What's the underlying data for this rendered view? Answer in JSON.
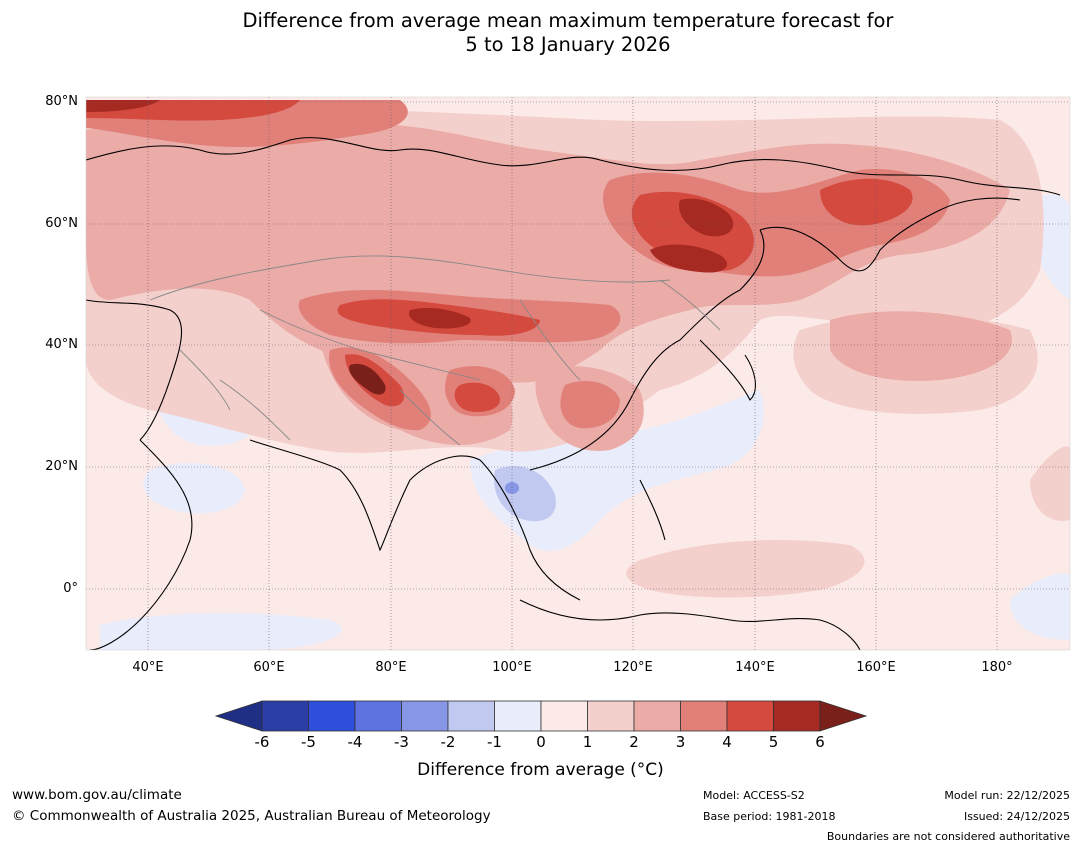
{
  "title_line1": "Difference from average mean maximum temperature forecast for",
  "title_line2": "5 to 18 January 2026",
  "map": {
    "lat_labels": [
      "80°N",
      "60°N",
      "40°N",
      "20°N",
      "0°"
    ],
    "lon_labels": [
      "40°E",
      "60°E",
      "80°E",
      "100°E",
      "120°E",
      "140°E",
      "160°E",
      "180°"
    ],
    "colors": {
      "ocean_base": "#fbeae8",
      "cool_light": "#e9ecfb",
      "cool_mid": "#c1c9f1",
      "cool_strong": "#8896e6",
      "warm_1": "#f4d0cd",
      "warm_2": "#ebaba7",
      "warm_3": "#e18079",
      "warm_4": "#d44a3f",
      "warm_5": "#a72a22",
      "warm_6": "#7a1f1a",
      "coast": "#000000",
      "border": "#888888",
      "grid": "#555555"
    }
  },
  "colorbar": {
    "ticks": [
      "-6",
      "-5",
      "-4",
      "-3",
      "-2",
      "-1",
      "0",
      "1",
      "2",
      "3",
      "4",
      "5",
      "6"
    ],
    "colors": [
      "#2b3da6",
      "#2d4fdb",
      "#5e73e0",
      "#8896e6",
      "#c1c9f1",
      "#e9ecfb",
      "#fbeae8",
      "#f4d0cd",
      "#ebaba7",
      "#e18079",
      "#d44a3f",
      "#a72a22"
    ],
    "extend_low": "#1f2f85",
    "extend_high": "#7a1f1a",
    "title": "Difference from average (°C)"
  },
  "footer": {
    "url": "www.bom.gov.au/climate",
    "copyright": "© Commonwealth of Australia 2025, Australian Bureau of Meteorology",
    "model": "Model: ACCESS-S2",
    "base_period": "Base period: 1981-2018",
    "model_run": "Model run: 22/12/2025",
    "issued": "Issued: 24/12/2025",
    "disclaimer": "Boundaries are not considered authoritative"
  }
}
